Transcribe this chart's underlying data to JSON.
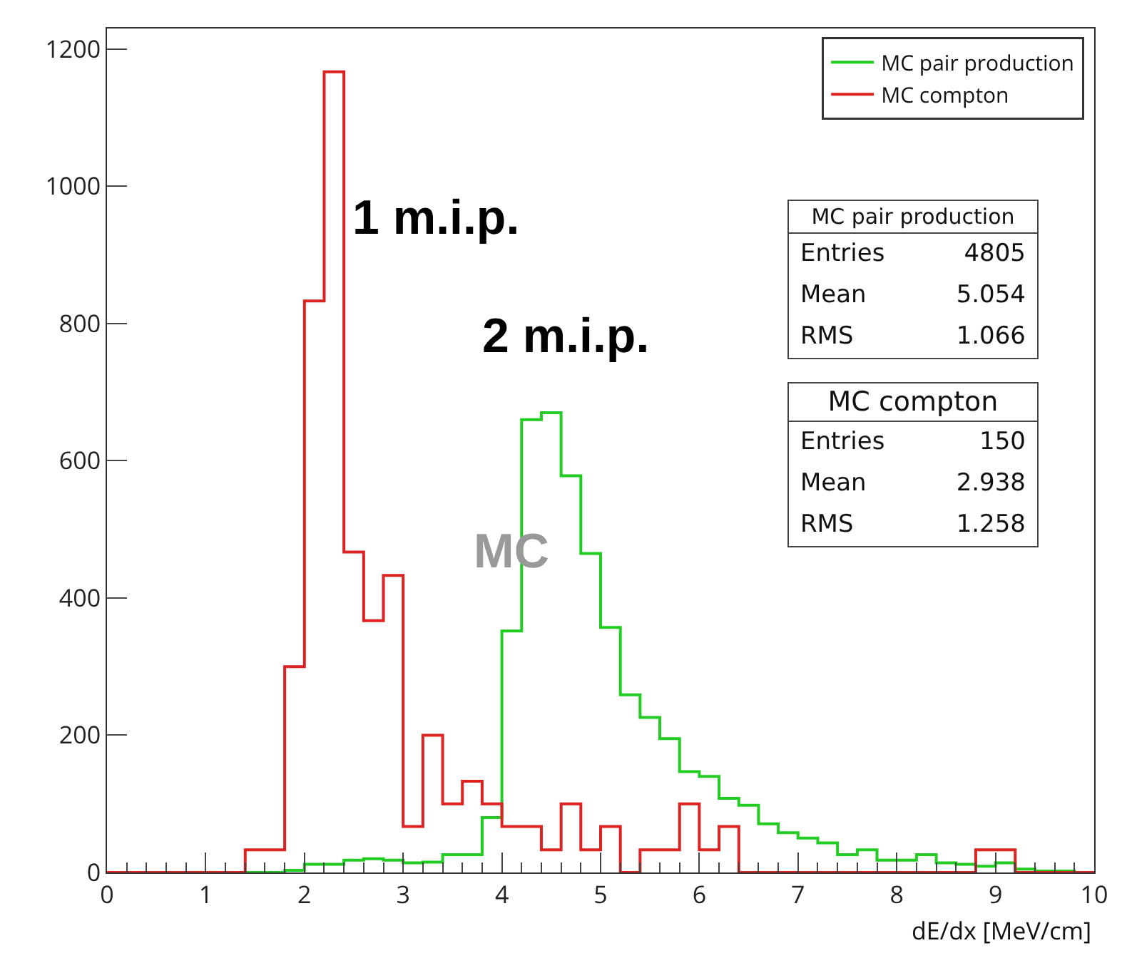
{
  "chart_data": {
    "type": "histogram",
    "xlabel": "dE/dx [MeV/cm]",
    "bins": [
      0,
      0.2,
      0.4,
      0.6,
      0.8,
      1,
      1.2,
      1.4,
      1.6,
      1.8,
      2,
      2.2,
      2.4,
      2.6,
      2.8,
      3,
      3.2,
      3.4,
      3.6,
      3.8,
      4,
      4.2,
      4.4,
      4.6,
      4.8,
      5,
      5.2,
      5.4,
      5.6,
      5.8,
      6,
      6.2,
      6.4,
      6.6,
      6.8,
      7,
      7.2,
      7.4,
      7.6,
      7.8,
      8,
      8.2,
      8.4,
      8.6,
      8.8,
      9,
      9.2,
      9.4,
      9.6,
      9.8,
      10
    ],
    "series": [
      {
        "name": "MC pair production",
        "color": "#22cc22",
        "values": [
          0,
          0,
          0,
          0,
          0,
          0,
          0,
          0,
          0,
          3,
          12,
          12,
          18,
          20,
          18,
          14,
          15,
          26,
          26,
          80,
          352,
          660,
          670,
          578,
          465,
          357,
          259,
          226,
          195,
          147,
          140,
          108,
          98,
          71,
          58,
          50,
          43,
          26,
          33,
          18,
          18,
          26,
          14,
          12,
          9,
          14,
          5,
          2,
          2,
          0
        ]
      },
      {
        "name": "MC compton",
        "color": "#dd2222",
        "values": [
          0,
          0,
          0,
          0,
          0,
          0,
          0,
          33,
          33,
          300,
          833,
          1167,
          467,
          367,
          433,
          67,
          200,
          100,
          133,
          100,
          67,
          67,
          33,
          100,
          33,
          67,
          0,
          33,
          33,
          100,
          33,
          67,
          0,
          0,
          0,
          0,
          0,
          0,
          0,
          0,
          0,
          0,
          0,
          0,
          33,
          33,
          0,
          0,
          0,
          0
        ]
      }
    ],
    "xlim": [
      0,
      10
    ],
    "xticks": [
      0,
      1,
      2,
      3,
      4,
      5,
      6,
      7,
      8,
      9,
      10
    ],
    "ylim": [
      0,
      1230
    ],
    "yticks": [
      0,
      200,
      400,
      600,
      800,
      1000,
      1200
    ],
    "grid": false,
    "legend": "top right",
    "annotations": [
      "1 m.i.p.",
      "2 m.i.p.",
      "MC",
      "MC pair production",
      "Entries",
      "4805",
      "Mean",
      "5.054",
      "RMS",
      "1.066",
      "MC compton",
      "Entries",
      "150",
      "Mean",
      "2.938",
      "RMS",
      "1.258"
    ]
  }
}
